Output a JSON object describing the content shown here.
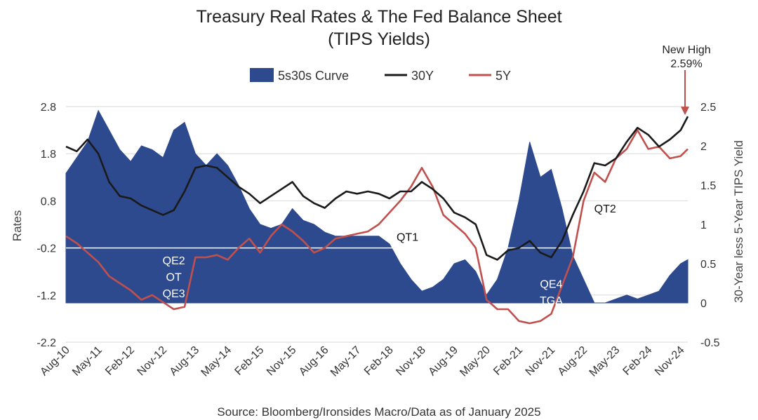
{
  "chart_data": {
    "type": "area",
    "title": "Treasury Real Rates & The Fed Balance Sheet",
    "subtitle": "(TIPS Yields)",
    "ylabel": "Rates",
    "y2label": "30-Year less 5-Year TIPS Yield",
    "source": "Source: Bloomberg/Ironsides Macro/Data as of January 2025",
    "ylim": [
      -2.2,
      2.8
    ],
    "y_ticks": [
      "2.8",
      "1.8",
      "0.8",
      "-0.2",
      "-1.2",
      "-2.2"
    ],
    "y2lim": [
      -0.5,
      2.5
    ],
    "y2_ticks": [
      "2.5",
      "2",
      "1.5",
      "1",
      "0.5",
      "0",
      "-0.5"
    ],
    "x_ticks": [
      "Aug-10",
      "May-11",
      "Feb-12",
      "Nov-12",
      "Aug-13",
      "May-14",
      "Feb-15",
      "Nov-15",
      "Aug-16",
      "May-17",
      "Feb-18",
      "Nov-18",
      "Aug-19",
      "May-20",
      "Feb-21",
      "Nov-21",
      "Aug-22",
      "May-23",
      "Feb-24",
      "Nov-24"
    ],
    "x_range": [
      "2010-08",
      "2025-01"
    ],
    "legend": {
      "position": "top",
      "entries": [
        "5s30s Curve",
        "30Y",
        "5Y"
      ]
    },
    "grid": "horizontal",
    "colors": {
      "curve": "#2E4A8E",
      "y30": "#1A1A1A",
      "y5": "#C0504D",
      "grid": "#D9D9D9",
      "zero_line": "#FFFFFF"
    },
    "series": [
      {
        "name": "5s30s Curve",
        "axis": "right",
        "style": "area",
        "x": [
          "2010-08",
          "2010-11",
          "2011-02",
          "2011-05",
          "2011-08",
          "2011-11",
          "2012-02",
          "2012-05",
          "2012-08",
          "2012-11",
          "2013-02",
          "2013-05",
          "2013-08",
          "2013-11",
          "2014-02",
          "2014-05",
          "2014-08",
          "2014-11",
          "2015-02",
          "2015-05",
          "2015-08",
          "2015-11",
          "2016-02",
          "2016-05",
          "2016-08",
          "2016-11",
          "2017-02",
          "2017-05",
          "2017-08",
          "2017-11",
          "2018-02",
          "2018-05",
          "2018-08",
          "2018-11",
          "2019-02",
          "2019-05",
          "2019-08",
          "2019-11",
          "2020-02",
          "2020-05",
          "2020-08",
          "2020-11",
          "2021-02",
          "2021-05",
          "2021-08",
          "2021-11",
          "2022-02",
          "2022-05",
          "2022-08",
          "2022-11",
          "2023-02",
          "2023-05",
          "2023-08",
          "2023-11",
          "2024-02",
          "2024-05",
          "2024-08",
          "2024-11",
          "2025-01"
        ],
        "values": [
          1.65,
          1.85,
          2.05,
          2.45,
          2.2,
          1.95,
          1.8,
          2.0,
          1.95,
          1.85,
          2.2,
          2.3,
          1.9,
          1.75,
          1.9,
          1.75,
          1.5,
          1.2,
          1.0,
          0.95,
          1.0,
          1.2,
          1.05,
          1.0,
          0.9,
          0.85,
          0.85,
          0.85,
          0.85,
          0.85,
          0.75,
          0.5,
          0.3,
          0.15,
          0.2,
          0.3,
          0.5,
          0.55,
          0.4,
          0.1,
          0.3,
          0.7,
          1.3,
          2.05,
          1.6,
          1.7,
          1.2,
          0.6,
          0.3,
          0.0,
          0.0,
          0.05,
          0.1,
          0.05,
          0.1,
          0.15,
          0.35,
          0.5,
          0.55
        ]
      },
      {
        "name": "30Y",
        "axis": "left",
        "style": "line",
        "x": [
          "2010-08",
          "2010-11",
          "2011-02",
          "2011-05",
          "2011-08",
          "2011-11",
          "2012-02",
          "2012-05",
          "2012-08",
          "2012-11",
          "2013-02",
          "2013-05",
          "2013-08",
          "2013-11",
          "2014-02",
          "2014-05",
          "2014-08",
          "2014-11",
          "2015-02",
          "2015-05",
          "2015-08",
          "2015-11",
          "2016-02",
          "2016-05",
          "2016-08",
          "2016-11",
          "2017-02",
          "2017-05",
          "2017-08",
          "2017-11",
          "2018-02",
          "2018-05",
          "2018-08",
          "2018-11",
          "2019-02",
          "2019-05",
          "2019-08",
          "2019-11",
          "2020-02",
          "2020-05",
          "2020-08",
          "2020-11",
          "2021-02",
          "2021-05",
          "2021-08",
          "2021-11",
          "2022-02",
          "2022-05",
          "2022-08",
          "2022-11",
          "2023-02",
          "2023-05",
          "2023-08",
          "2023-11",
          "2024-02",
          "2024-05",
          "2024-08",
          "2024-11",
          "2025-01"
        ],
        "values": [
          1.95,
          1.85,
          2.1,
          1.8,
          1.2,
          0.9,
          0.85,
          0.7,
          0.6,
          0.5,
          0.6,
          1.0,
          1.5,
          1.55,
          1.5,
          1.3,
          1.1,
          0.95,
          0.75,
          0.9,
          1.05,
          1.2,
          0.9,
          0.75,
          0.65,
          0.85,
          1.0,
          0.95,
          1.0,
          0.95,
          0.85,
          1.0,
          1.0,
          1.2,
          1.05,
          0.85,
          0.55,
          0.45,
          0.3,
          -0.35,
          -0.45,
          -0.25,
          -0.2,
          -0.05,
          -0.3,
          -0.4,
          -0.05,
          0.5,
          1.0,
          1.6,
          1.55,
          1.7,
          2.05,
          2.35,
          2.2,
          1.95,
          2.1,
          2.3,
          2.59
        ]
      },
      {
        "name": "5Y",
        "axis": "left",
        "style": "line",
        "x": [
          "2010-08",
          "2010-11",
          "2011-02",
          "2011-05",
          "2011-08",
          "2011-11",
          "2012-02",
          "2012-05",
          "2012-08",
          "2012-11",
          "2013-02",
          "2013-05",
          "2013-08",
          "2013-11",
          "2014-02",
          "2014-05",
          "2014-08",
          "2014-11",
          "2015-02",
          "2015-05",
          "2015-08",
          "2015-11",
          "2016-02",
          "2016-05",
          "2016-08",
          "2016-11",
          "2017-02",
          "2017-05",
          "2017-08",
          "2017-11",
          "2018-02",
          "2018-05",
          "2018-08",
          "2018-11",
          "2019-02",
          "2019-05",
          "2019-08",
          "2019-11",
          "2020-02",
          "2020-05",
          "2020-08",
          "2020-11",
          "2021-02",
          "2021-05",
          "2021-08",
          "2021-11",
          "2022-02",
          "2022-05",
          "2022-08",
          "2022-11",
          "2023-02",
          "2023-05",
          "2023-08",
          "2023-11",
          "2024-02",
          "2024-05",
          "2024-08",
          "2024-11",
          "2025-01"
        ],
        "values": [
          0.05,
          -0.1,
          -0.3,
          -0.5,
          -0.8,
          -0.95,
          -1.1,
          -1.3,
          -1.2,
          -1.35,
          -1.5,
          -1.45,
          -0.4,
          -0.4,
          -0.35,
          -0.45,
          -0.2,
          0.0,
          -0.3,
          0.05,
          0.3,
          0.15,
          -0.05,
          -0.3,
          -0.2,
          0.0,
          0.05,
          0.1,
          0.15,
          0.3,
          0.55,
          0.8,
          1.1,
          1.5,
          1.1,
          0.5,
          0.3,
          0.1,
          -0.2,
          -1.3,
          -1.5,
          -1.5,
          -1.75,
          -1.8,
          -1.75,
          -1.6,
          -1.0,
          -0.4,
          0.8,
          1.4,
          1.2,
          1.7,
          1.9,
          2.3,
          1.9,
          1.95,
          1.7,
          1.75,
          1.9
        ]
      }
    ],
    "annotations": [
      {
        "text": "QE2",
        "x": "2013-02",
        "y": -0.55
      },
      {
        "text": "OT",
        "x": "2013-02",
        "y": -0.9
      },
      {
        "text": "QE3",
        "x": "2013-02",
        "y": -1.25
      },
      {
        "text": "QT1",
        "x": "2018-07",
        "y": -0.05
      },
      {
        "text": "QE4",
        "x": "2021-11",
        "y": -1.05
      },
      {
        "text": "TGA",
        "x": "2021-11",
        "y": -1.4
      },
      {
        "text": "QT2",
        "x": "2023-02",
        "y": 0.55
      }
    ],
    "callout": {
      "line1": "New High",
      "line2": "2.59%",
      "x": "2025-01",
      "y": 2.59
    }
  }
}
